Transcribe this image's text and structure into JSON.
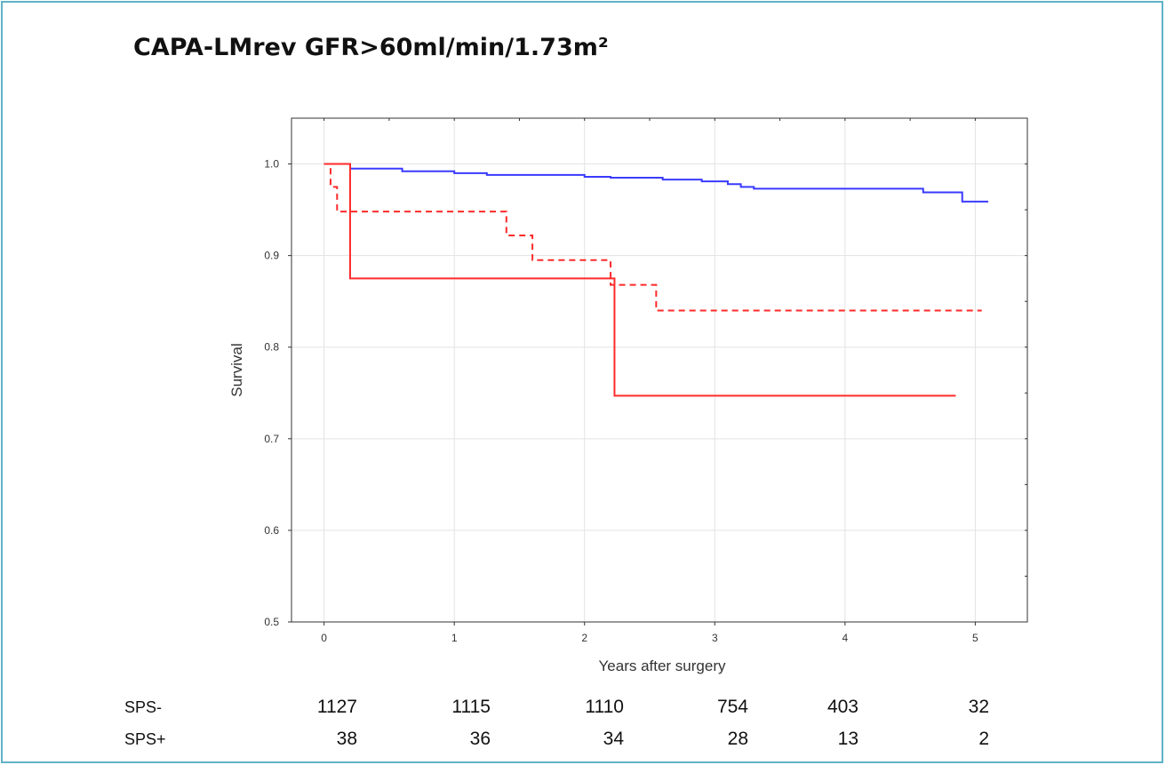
{
  "title": "CAPA-LMrev GFR>60ml/min/1.73m²",
  "frame_color": "#5fb3c6",
  "chart_data": {
    "type": "line",
    "title": "CAPA-LMrev GFR>60ml/min/1.73m²",
    "xlabel": "Years after surgery",
    "ylabel": "Survival",
    "xlim": [
      -0.25,
      5.4
    ],
    "ylim": [
      0.5,
      1.05
    ],
    "xticks": [
      0,
      1,
      2,
      3,
      4,
      5
    ],
    "yticks": [
      0.5,
      0.6,
      0.7,
      0.8,
      0.9,
      1.0
    ],
    "xtick_labels": [
      "0",
      "1",
      "2",
      "3",
      "4",
      "5"
    ],
    "ytick_labels": [
      "0.5",
      "0.6",
      "0.7",
      "0.8",
      "0.9",
      "1.0"
    ],
    "grid": true,
    "series": [
      {
        "color": "#3a3aff",
        "style": "solid",
        "step": true,
        "x": [
          0,
          0.2,
          0.6,
          1.0,
          1.25,
          2.0,
          2.2,
          2.6,
          2.9,
          3.1,
          3.2,
          3.3,
          4.0,
          4.5,
          4.6,
          4.9,
          5.1
        ],
        "y": [
          1.0,
          0.995,
          0.992,
          0.99,
          0.988,
          0.986,
          0.985,
          0.983,
          0.981,
          0.978,
          0.975,
          0.973,
          0.973,
          0.973,
          0.969,
          0.959,
          0.959
        ]
      },
      {
        "color": "#ff2a2a",
        "style": "dashed",
        "step": true,
        "x": [
          0,
          0.05,
          0.1,
          1.4,
          1.6,
          2.2,
          2.55,
          5.05
        ],
        "y": [
          1.0,
          0.975,
          0.948,
          0.922,
          0.895,
          0.868,
          0.84,
          0.84
        ]
      },
      {
        "color": "#ff2a2a",
        "style": "solid",
        "step": true,
        "x": [
          0,
          0.2,
          2.23,
          4.85
        ],
        "y": [
          1.0,
          0.875,
          0.747,
          0.747
        ]
      }
    ]
  },
  "risk_table": {
    "rows": [
      {
        "label": "SPS-",
        "values": [
          "1127",
          "1115",
          "1110",
          "754",
          "403",
          "32"
        ]
      },
      {
        "label": "SPS+",
        "values": [
          "38",
          "36",
          "34",
          "28",
          "13",
          "2"
        ]
      }
    ]
  }
}
